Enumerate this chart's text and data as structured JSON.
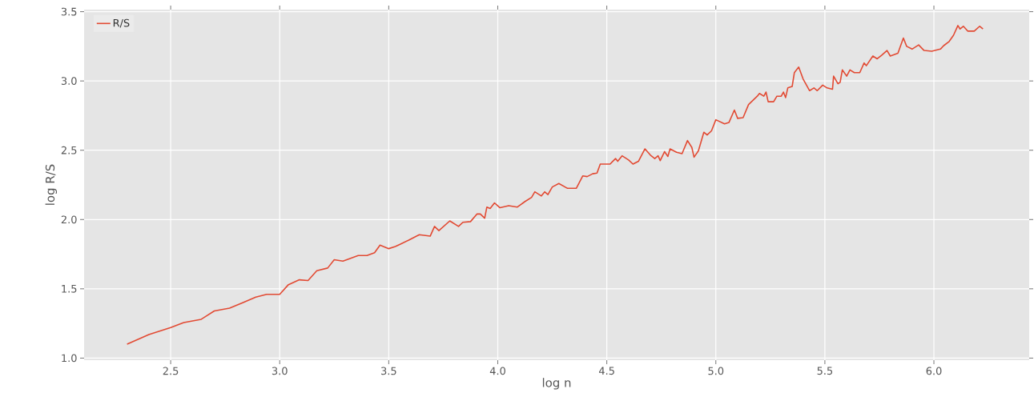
{
  "chart_data": {
    "type": "line",
    "xlabel": "log n",
    "ylabel": "log R/S",
    "x": [
      2.3,
      2.4,
      2.5,
      2.56,
      2.64,
      2.7,
      2.77,
      2.83,
      2.89,
      2.94,
      3.0,
      3.04,
      3.09,
      3.13,
      3.17,
      3.22,
      3.25,
      3.29,
      3.36,
      3.4,
      3.435,
      3.46,
      3.5,
      3.53,
      3.55,
      3.59,
      3.64,
      3.69,
      3.71,
      3.73,
      3.78,
      3.82,
      3.84,
      3.875,
      3.905,
      3.92,
      3.94,
      3.95,
      3.965,
      3.985,
      4.01,
      4.05,
      4.09,
      4.125,
      4.155,
      4.17,
      4.2,
      4.215,
      4.23,
      4.25,
      4.28,
      4.32,
      4.36,
      4.39,
      4.41,
      4.435,
      4.455,
      4.47,
      4.515,
      4.54,
      4.55,
      4.57,
      4.6,
      4.62,
      4.645,
      4.675,
      4.7,
      4.72,
      4.735,
      4.745,
      4.765,
      4.78,
      4.79,
      4.82,
      4.845,
      4.87,
      4.89,
      4.9,
      4.92,
      4.945,
      4.96,
      4.98,
      5.0,
      5.04,
      5.06,
      5.085,
      5.1,
      5.125,
      5.15,
      5.19,
      5.2,
      5.22,
      5.23,
      5.24,
      5.265,
      5.28,
      5.3,
      5.31,
      5.32,
      5.33,
      5.35,
      5.36,
      5.38,
      5.4,
      5.43,
      5.45,
      5.465,
      5.49,
      5.51,
      5.535,
      5.54,
      5.56,
      5.57,
      5.58,
      5.6,
      5.615,
      5.635,
      5.66,
      5.68,
      5.69,
      5.72,
      5.74,
      5.76,
      5.785,
      5.8,
      5.835,
      5.86,
      5.875,
      5.9,
      5.93,
      5.955,
      5.99,
      6.03,
      6.045,
      6.07,
      6.09,
      6.11,
      6.12,
      6.135,
      6.155,
      6.185,
      6.21,
      6.225
    ],
    "series": [
      {
        "name": "R/S",
        "color": "#e24a33",
        "values": [
          1.1,
          1.17,
          1.22,
          1.256,
          1.28,
          1.34,
          1.36,
          1.4,
          1.44,
          1.46,
          1.46,
          1.53,
          1.565,
          1.56,
          1.63,
          1.65,
          1.71,
          1.7,
          1.74,
          1.74,
          1.76,
          1.815,
          1.79,
          1.805,
          1.82,
          1.85,
          1.89,
          1.88,
          1.95,
          1.92,
          1.99,
          1.95,
          1.98,
          1.985,
          2.04,
          2.04,
          2.01,
          2.09,
          2.08,
          2.12,
          2.085,
          2.1,
          2.09,
          2.13,
          2.16,
          2.2,
          2.17,
          2.2,
          2.18,
          2.235,
          2.26,
          2.225,
          2.225,
          2.315,
          2.31,
          2.33,
          2.335,
          2.4,
          2.4,
          2.44,
          2.42,
          2.46,
          2.43,
          2.4,
          2.42,
          2.51,
          2.465,
          2.44,
          2.46,
          2.425,
          2.49,
          2.455,
          2.51,
          2.485,
          2.475,
          2.57,
          2.52,
          2.45,
          2.495,
          2.63,
          2.61,
          2.64,
          2.72,
          2.69,
          2.7,
          2.79,
          2.73,
          2.735,
          2.83,
          2.89,
          2.91,
          2.89,
          2.92,
          2.85,
          2.85,
          2.89,
          2.89,
          2.92,
          2.88,
          2.95,
          2.96,
          3.06,
          3.1,
          3.015,
          2.93,
          2.95,
          2.93,
          2.97,
          2.95,
          2.94,
          3.035,
          2.98,
          2.99,
          3.08,
          3.035,
          3.08,
          3.06,
          3.06,
          3.13,
          3.11,
          3.18,
          3.16,
          3.185,
          3.22,
          3.18,
          3.2,
          3.31,
          3.25,
          3.23,
          3.26,
          3.22,
          3.215,
          3.23,
          3.255,
          3.285,
          3.33,
          3.4,
          3.375,
          3.395,
          3.36,
          3.36,
          3.395,
          3.375
        ]
      }
    ],
    "xlim": [
      2.103,
      6.437
    ],
    "ylim": [
      0.985,
      3.515
    ],
    "xticks": [
      {
        "value": 2.5,
        "label": "2.5"
      },
      {
        "value": 3.0,
        "label": "3.0"
      },
      {
        "value": 3.5,
        "label": "3.5"
      },
      {
        "value": 4.0,
        "label": "4.0"
      },
      {
        "value": 4.5,
        "label": "4.5"
      },
      {
        "value": 5.0,
        "label": "5.0"
      },
      {
        "value": 5.5,
        "label": "5.5"
      },
      {
        "value": 6.0,
        "label": "6.0"
      }
    ],
    "yticks": [
      {
        "value": 1.0,
        "label": "1.0"
      },
      {
        "value": 1.5,
        "label": "1.5"
      },
      {
        "value": 2.0,
        "label": "2.0"
      },
      {
        "value": 2.5,
        "label": "2.5"
      },
      {
        "value": 3.0,
        "label": "3.0"
      },
      {
        "value": 3.5,
        "label": "3.5"
      }
    ],
    "grid": true,
    "legend": "top left"
  }
}
